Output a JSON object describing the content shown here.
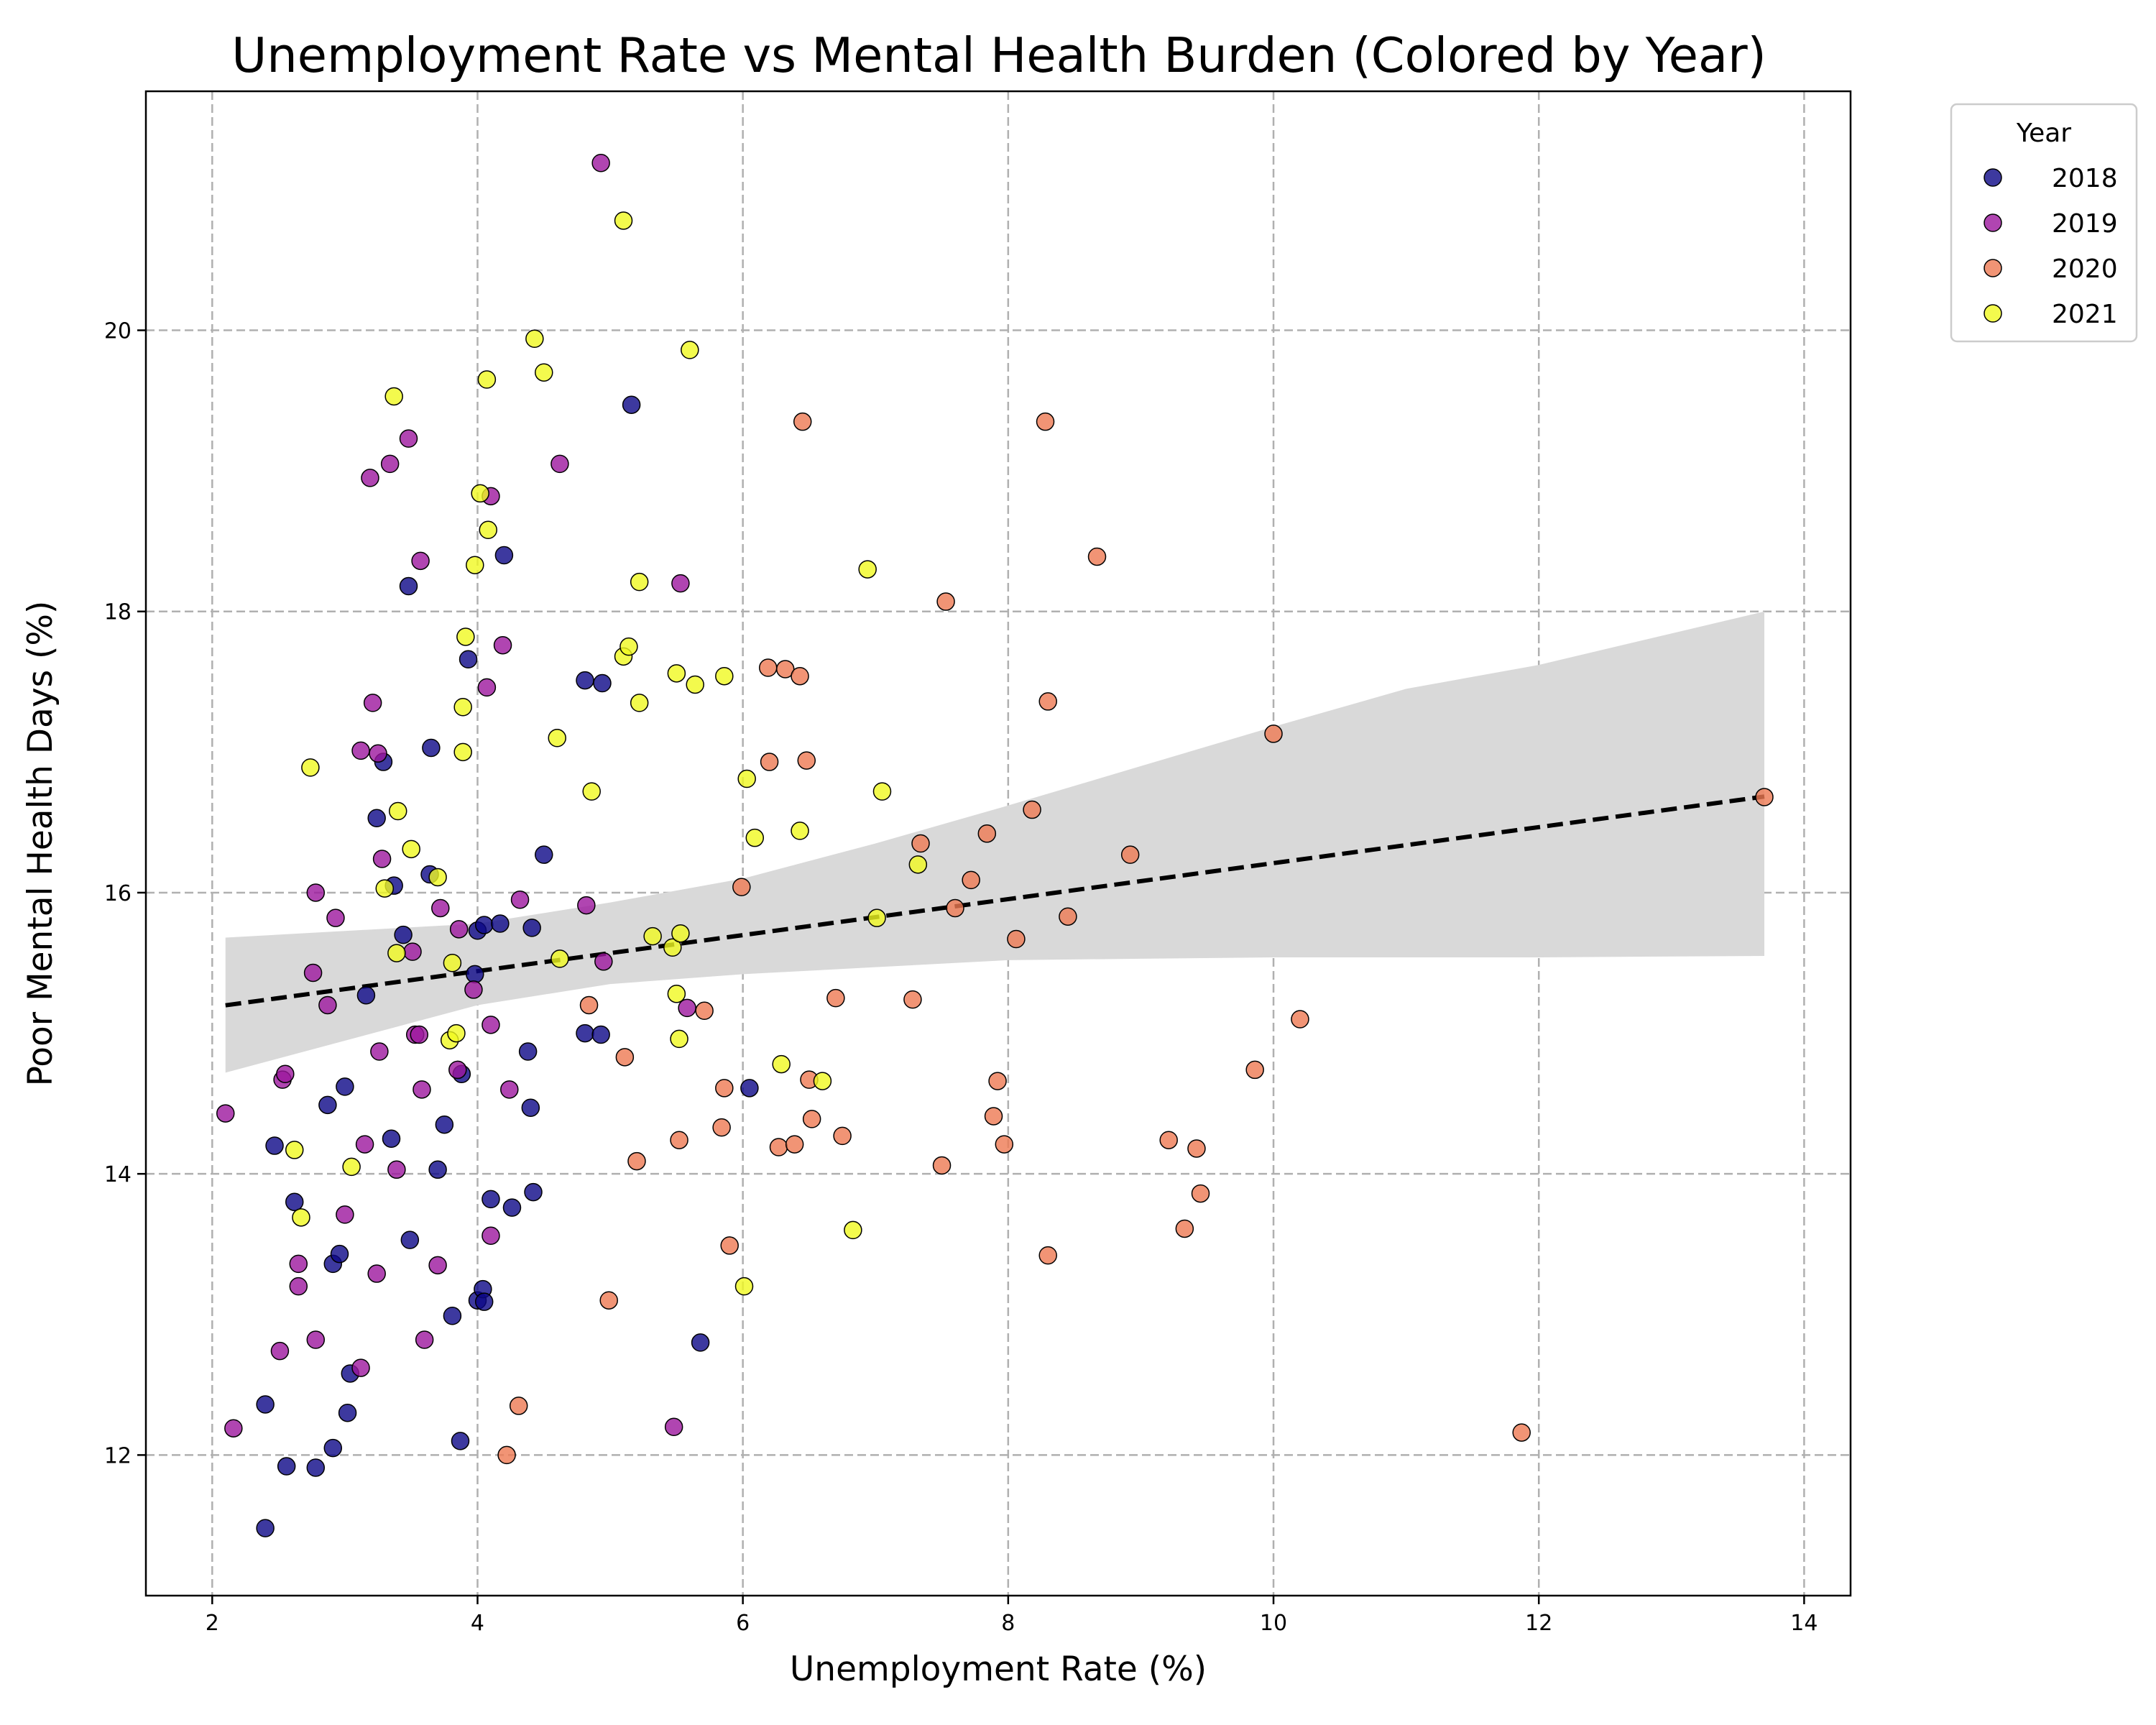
{
  "chart_data": {
    "type": "scatter",
    "title": "Unemployment Rate vs Mental Health Burden (Colored by Year)",
    "xlabel": "Unemployment Rate (%)",
    "ylabel": "Poor Mental Health Days (%)",
    "xlim": [
      1.5,
      14.35
    ],
    "ylim": [
      11.0,
      21.7
    ],
    "xticks": [
      2,
      4,
      6,
      8,
      10,
      12,
      14
    ],
    "yticks": [
      12,
      14,
      16,
      18,
      20
    ],
    "grid": true,
    "legend": {
      "title": "Year",
      "placement": "outside-top-right"
    },
    "series": [
      {
        "name": "2018",
        "color": "#0d0887",
        "points": [
          [
            2.4,
            11.48
          ],
          [
            2.56,
            11.92
          ],
          [
            2.78,
            11.91
          ],
          [
            2.91,
            12.05
          ],
          [
            2.4,
            12.36
          ],
          [
            3.04,
            12.58
          ],
          [
            3.02,
            12.3
          ],
          [
            3.87,
            12.1
          ],
          [
            3.81,
            12.99
          ],
          [
            4.0,
            13.1
          ],
          [
            4.04,
            13.18
          ],
          [
            4.05,
            13.09
          ],
          [
            5.68,
            12.8
          ],
          [
            2.91,
            13.36
          ],
          [
            2.96,
            13.43
          ],
          [
            3.49,
            13.53
          ],
          [
            4.1,
            13.82
          ],
          [
            4.26,
            13.76
          ],
          [
            4.42,
            13.87
          ],
          [
            2.47,
            14.2
          ],
          [
            2.62,
            13.8
          ],
          [
            2.87,
            14.49
          ],
          [
            3.0,
            14.62
          ],
          [
            3.35,
            14.25
          ],
          [
            3.7,
            14.03
          ],
          [
            3.75,
            14.35
          ],
          [
            3.88,
            14.71
          ],
          [
            4.38,
            14.87
          ],
          [
            4.4,
            14.47
          ],
          [
            4.81,
            15.0
          ],
          [
            4.93,
            14.99
          ],
          [
            6.05,
            14.61
          ],
          [
            3.16,
            15.27
          ],
          [
            3.44,
            15.7
          ],
          [
            3.98,
            15.42
          ],
          [
            4.0,
            15.73
          ],
          [
            4.05,
            15.77
          ],
          [
            4.17,
            15.78
          ],
          [
            4.41,
            15.75
          ],
          [
            3.37,
            16.05
          ],
          [
            3.64,
            16.13
          ],
          [
            3.24,
            16.53
          ],
          [
            3.29,
            16.93
          ],
          [
            3.65,
            17.03
          ],
          [
            4.5,
            16.27
          ],
          [
            3.93,
            17.66
          ],
          [
            4.81,
            17.51
          ],
          [
            4.94,
            17.49
          ],
          [
            3.48,
            18.18
          ],
          [
            4.2,
            18.4
          ],
          [
            5.16,
            19.47
          ]
        ]
      },
      {
        "name": "2019",
        "color": "#9c179e",
        "points": [
          [
            2.1,
            14.43
          ],
          [
            2.16,
            12.19
          ],
          [
            2.51,
            12.74
          ],
          [
            2.78,
            12.82
          ],
          [
            3.12,
            12.62
          ],
          [
            3.6,
            12.82
          ],
          [
            2.65,
            13.36
          ],
          [
            2.65,
            13.2
          ],
          [
            3.24,
            13.29
          ],
          [
            3.7,
            13.35
          ],
          [
            4.1,
            13.56
          ],
          [
            3.0,
            13.71
          ],
          [
            2.53,
            14.67
          ],
          [
            2.55,
            14.71
          ],
          [
            3.15,
            14.21
          ],
          [
            3.39,
            14.03
          ],
          [
            3.58,
            14.6
          ],
          [
            4.24,
            14.6
          ],
          [
            3.26,
            14.87
          ],
          [
            3.53,
            14.99
          ],
          [
            3.56,
            14.99
          ],
          [
            3.85,
            14.74
          ],
          [
            4.1,
            15.06
          ],
          [
            5.48,
            12.2
          ],
          [
            2.76,
            15.43
          ],
          [
            2.87,
            15.2
          ],
          [
            3.97,
            15.31
          ],
          [
            4.95,
            15.51
          ],
          [
            5.58,
            15.18
          ],
          [
            2.78,
            16.0
          ],
          [
            2.93,
            15.82
          ],
          [
            3.28,
            16.24
          ],
          [
            3.51,
            15.58
          ],
          [
            3.72,
            15.89
          ],
          [
            3.86,
            15.74
          ],
          [
            4.32,
            15.95
          ],
          [
            4.82,
            15.91
          ],
          [
            3.12,
            17.01
          ],
          [
            3.25,
            16.99
          ],
          [
            3.21,
            17.35
          ],
          [
            4.07,
            17.46
          ],
          [
            4.19,
            17.76
          ],
          [
            5.53,
            18.2
          ],
          [
            3.57,
            18.36
          ],
          [
            4.1,
            18.82
          ],
          [
            3.19,
            18.95
          ],
          [
            3.34,
            19.05
          ],
          [
            3.48,
            19.23
          ],
          [
            4.62,
            19.05
          ],
          [
            4.93,
            21.19
          ]
        ]
      },
      {
        "name": "2020",
        "color": "#ed7953",
        "points": [
          [
            4.22,
            12.0
          ],
          [
            4.31,
            12.35
          ],
          [
            4.99,
            13.1
          ],
          [
            5.2,
            14.09
          ],
          [
            5.11,
            14.83
          ],
          [
            4.84,
            15.2
          ],
          [
            5.52,
            14.24
          ],
          [
            5.84,
            14.33
          ],
          [
            5.86,
            14.61
          ],
          [
            5.9,
            13.49
          ],
          [
            5.71,
            15.16
          ],
          [
            6.27,
            14.19
          ],
          [
            6.39,
            14.21
          ],
          [
            6.5,
            14.67
          ],
          [
            6.52,
            14.39
          ],
          [
            6.75,
            14.27
          ],
          [
            6.7,
            15.25
          ],
          [
            7.28,
            15.24
          ],
          [
            7.5,
            14.06
          ],
          [
            7.89,
            14.41
          ],
          [
            7.92,
            14.66
          ],
          [
            7.97,
            14.21
          ],
          [
            8.3,
            13.42
          ],
          [
            9.21,
            14.24
          ],
          [
            9.42,
            14.18
          ],
          [
            9.45,
            13.86
          ],
          [
            9.33,
            13.61
          ],
          [
            9.86,
            14.74
          ],
          [
            10.2,
            15.1
          ],
          [
            11.87,
            12.16
          ],
          [
            7.6,
            15.89
          ],
          [
            8.06,
            15.67
          ],
          [
            8.45,
            15.83
          ],
          [
            5.99,
            16.04
          ],
          [
            6.2,
            16.93
          ],
          [
            6.48,
            16.94
          ],
          [
            7.34,
            16.35
          ],
          [
            7.72,
            16.09
          ],
          [
            7.84,
            16.42
          ],
          [
            8.18,
            16.59
          ],
          [
            8.92,
            16.27
          ],
          [
            6.19,
            17.6
          ],
          [
            6.32,
            17.59
          ],
          [
            6.43,
            17.54
          ],
          [
            7.53,
            18.07
          ],
          [
            8.3,
            17.36
          ],
          [
            8.67,
            18.39
          ],
          [
            10.0,
            17.13
          ],
          [
            6.45,
            19.35
          ],
          [
            8.28,
            19.35
          ],
          [
            13.7,
            16.68
          ]
        ]
      },
      {
        "name": "2021",
        "color": "#f0f921",
        "points": [
          [
            2.62,
            14.17
          ],
          [
            2.67,
            13.69
          ],
          [
            3.05,
            14.05
          ],
          [
            3.79,
            14.95
          ],
          [
            3.84,
            15.0
          ],
          [
            3.39,
            15.57
          ],
          [
            3.81,
            15.5
          ],
          [
            4.62,
            15.53
          ],
          [
            5.32,
            15.69
          ],
          [
            5.47,
            15.61
          ],
          [
            5.5,
            15.28
          ],
          [
            5.52,
            14.96
          ],
          [
            5.53,
            15.71
          ],
          [
            6.01,
            13.2
          ],
          [
            6.29,
            14.78
          ],
          [
            6.6,
            14.66
          ],
          [
            6.83,
            13.6
          ],
          [
            7.01,
            15.82
          ],
          [
            7.32,
            16.2
          ],
          [
            2.74,
            16.89
          ],
          [
            3.3,
            16.03
          ],
          [
            3.4,
            16.58
          ],
          [
            3.5,
            16.31
          ],
          [
            3.7,
            16.11
          ],
          [
            3.89,
            17.0
          ],
          [
            3.89,
            17.32
          ],
          [
            4.6,
            17.1
          ],
          [
            4.86,
            16.72
          ],
          [
            3.91,
            17.82
          ],
          [
            5.1,
            17.68
          ],
          [
            5.14,
            17.75
          ],
          [
            5.22,
            17.35
          ],
          [
            5.5,
            17.56
          ],
          [
            5.64,
            17.48
          ],
          [
            5.86,
            17.54
          ],
          [
            6.03,
            16.81
          ],
          [
            6.09,
            16.39
          ],
          [
            6.43,
            16.44
          ],
          [
            7.05,
            16.72
          ],
          [
            3.98,
            18.33
          ],
          [
            4.02,
            18.84
          ],
          [
            4.08,
            18.58
          ],
          [
            5.22,
            18.21
          ],
          [
            6.94,
            18.3
          ],
          [
            3.37,
            19.53
          ],
          [
            4.07,
            19.65
          ],
          [
            4.43,
            19.94
          ],
          [
            4.5,
            19.7
          ],
          [
            5.6,
            19.86
          ],
          [
            5.1,
            20.78
          ]
        ]
      }
    ],
    "trend": {
      "style": "dashed",
      "color": "#000000",
      "x0": 2.1,
      "x1": 13.7,
      "slope": 0.128,
      "intercept": 14.93
    },
    "confidence_band": {
      "color": "#d9d9d9",
      "x": [
        2.1,
        4.0,
        5.0,
        6.0,
        7.0,
        8.0,
        9.0,
        10.0,
        11.0,
        12.0,
        13.7
      ],
      "upper": [
        15.68,
        15.78,
        15.93,
        16.1,
        16.35,
        16.62,
        16.9,
        17.18,
        17.45,
        17.62,
        18.0
      ],
      "lower": [
        14.72,
        15.2,
        15.35,
        15.42,
        15.47,
        15.52,
        15.53,
        15.54,
        15.54,
        15.54,
        15.55
      ]
    }
  }
}
